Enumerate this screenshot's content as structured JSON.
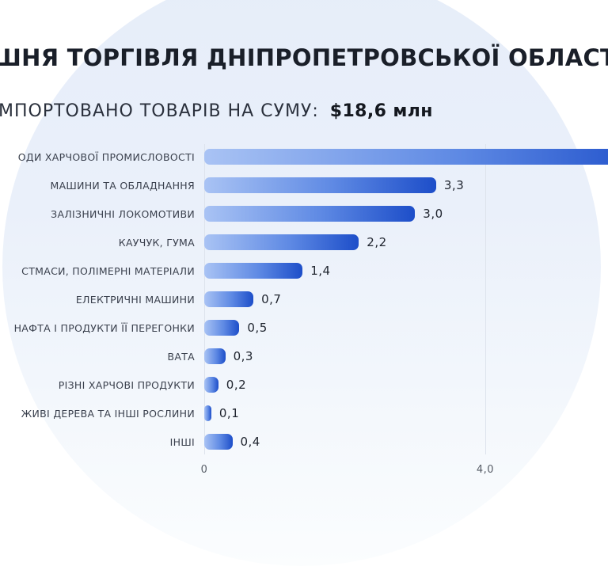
{
  "header": {
    "title": "ШНЯ ТОРГІВЛЯ ДНІПРОПЕТРОВСЬКОЇ ОБЛАСТІ",
    "title_note": "title is cropped at both left and right edges of the image",
    "subtitle_prefix": "МПОРТОВАНО ТОВАРІВ НА СУМУ:",
    "subtitle_value": "$18,6 млн"
  },
  "chart_data": {
    "type": "bar",
    "orientation": "horizontal",
    "categories": [
      "ОДИ ХАРЧОВОЇ ПРОМИСЛОВОСТІ",
      "МАШИНИ ТА ОБЛАДНАННЯ",
      "ЗАЛІЗНИЧНІ ЛОКОМОТИВИ",
      "КАУЧУК, ГУМА",
      "СТМАСИ, ПОЛІМЕРНІ МАТЕРІАЛИ",
      "ЕЛЕКТРИЧНІ МАШИНИ",
      "НАФТА І ПРОДУКТИ ЇЇ ПЕРЕГОНКИ",
      "ВАТА",
      "РІЗНІ ХАРЧОВІ ПРОДУКТИ",
      "ЖИВІ ДЕРЕВА ТА ІНШІ РОСЛИНИ",
      "ІНШІ"
    ],
    "values": [
      6.5,
      3.3,
      3.0,
      2.2,
      1.4,
      0.7,
      0.5,
      0.3,
      0.2,
      0.1,
      0.4
    ],
    "value_labels": [
      "",
      "3,3",
      "3,0",
      "2,2",
      "1,4",
      "0,7",
      "0,5",
      "0,3",
      "0,2",
      "0,1",
      "0,4"
    ],
    "first_bar_clipped": true,
    "first_bar_note": "first bar runs off the right edge of the crop, its data label is not visible; 6.5 estimated as 18.6 minus sum of labeled bars",
    "x_ticks": [
      {
        "label": "0",
        "value": 0
      },
      {
        "label": "4,0",
        "value": 4
      }
    ],
    "xlim_visible": [
      0,
      5.75
    ],
    "grid": "faint vertical gridlines at ticks",
    "legend": "none",
    "units": "$ млн",
    "colors": {
      "bar_gradient_start": "#a9c3f4",
      "bar_gradient_end": "#1d4ec9",
      "page_background": "#ffffff",
      "ellipse_top": "#e6edf9",
      "ellipse_bottom": "#fbfdfe",
      "title_text": "#1a1f29",
      "category_text": "#3a404d",
      "value_text": "#20252f",
      "tick_text": "#565c66",
      "gridline": "#dde3ec"
    }
  }
}
